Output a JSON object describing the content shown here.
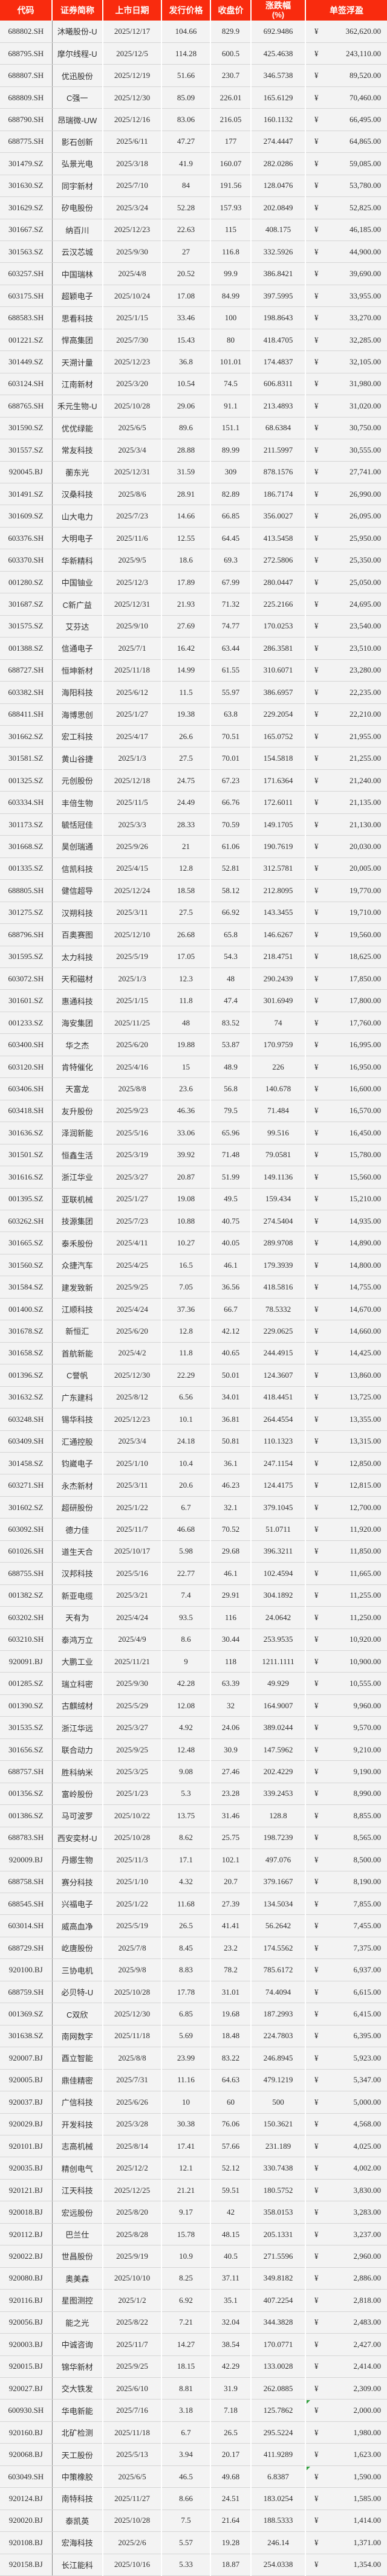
{
  "colors": {
    "header_bg": "#f92b0e",
    "header_text": "#ffffff",
    "row_bg": "#f3f3f3",
    "grid": "#d5d5d5",
    "col_divider": "#8a8a8a",
    "text": "#2e2e2e",
    "marker_green": "#2fa03c"
  },
  "table": {
    "headers": [
      "代码",
      "证券简称",
      "上市日期",
      "发行价格",
      "收盘价",
      "涨跌幅",
      "单签浮盈"
    ],
    "change_unit": "(%)",
    "currency_symbol": "¥",
    "columns": [
      {
        "name": "code-cell",
        "cls": "code"
      },
      {
        "name": "name-cell",
        "cls": "name"
      },
      {
        "name": "date-cell",
        "cls": "date"
      },
      {
        "name": "issue-price-cell",
        "cls": "num"
      },
      {
        "name": "close-price-cell",
        "cls": "num"
      },
      {
        "name": "change-pct-cell",
        "cls": "num"
      },
      {
        "name": "profit-cell",
        "cls": "profit"
      }
    ],
    "marked_rows": [
      108,
      111
    ],
    "rows": [
      [
        "688802.SH",
        "沐曦股份-U",
        "2025/12/17",
        "104.66",
        "829.9",
        "692.9486",
        "362,620.00"
      ],
      [
        "688795.SH",
        "摩尔线程-U",
        "2025/12/5",
        "114.28",
        "600.5",
        "425.4638",
        "243,110.00"
      ],
      [
        "688807.SH",
        "优迅股份",
        "2025/12/19",
        "51.66",
        "230.7",
        "346.5738",
        "89,520.00"
      ],
      [
        "688809.SH",
        "C强一",
        "2025/12/30",
        "85.09",
        "226.01",
        "165.6129",
        "70,460.00"
      ],
      [
        "688790.SH",
        "昂瑞微-UW",
        "2025/12/16",
        "83.06",
        "216.05",
        "160.1132",
        "66,495.00"
      ],
      [
        "688775.SH",
        "影石创新",
        "2025/6/11",
        "47.27",
        "177",
        "274.4447",
        "64,865.00"
      ],
      [
        "301479.SZ",
        "弘景光电",
        "2025/3/18",
        "41.9",
        "160.07",
        "282.0286",
        "59,085.00"
      ],
      [
        "301630.SZ",
        "同宇新材",
        "2025/7/10",
        "84",
        "191.56",
        "128.0476",
        "53,780.00"
      ],
      [
        "301629.SZ",
        "矽电股份",
        "2025/3/24",
        "52.28",
        "157.93",
        "202.0849",
        "52,825.00"
      ],
      [
        "301667.SZ",
        "纳百川",
        "2025/12/23",
        "22.63",
        "115",
        "408.175",
        "46,185.00"
      ],
      [
        "301563.SZ",
        "云汉芯城",
        "2025/9/30",
        "27",
        "116.8",
        "332.5926",
        "44,900.00"
      ],
      [
        "603257.SH",
        "中国瑞林",
        "2025/4/8",
        "20.52",
        "99.9",
        "386.8421",
        "39,690.00"
      ],
      [
        "603175.SH",
        "超颖电子",
        "2025/10/24",
        "17.08",
        "84.99",
        "397.5995",
        "33,955.00"
      ],
      [
        "688583.SH",
        "思看科技",
        "2025/1/15",
        "33.46",
        "100",
        "198.8643",
        "33,270.00"
      ],
      [
        "001221.SZ",
        "悍高集团",
        "2025/7/30",
        "15.43",
        "80",
        "418.4705",
        "32,285.00"
      ],
      [
        "301449.SZ",
        "天溯计量",
        "2025/12/23",
        "36.8",
        "101.01",
        "174.4837",
        "32,105.00"
      ],
      [
        "603124.SH",
        "江南新材",
        "2025/3/20",
        "10.54",
        "74.5",
        "606.8311",
        "31,980.00"
      ],
      [
        "688765.SH",
        "禾元生物-U",
        "2025/10/28",
        "29.06",
        "91.1",
        "213.4893",
        "31,020.00"
      ],
      [
        "301590.SZ",
        "优优绿能",
        "2025/6/5",
        "89.6",
        "151.1",
        "68.6384",
        "30,750.00"
      ],
      [
        "301557.SZ",
        "常友科技",
        "2025/3/4",
        "28.88",
        "89.99",
        "211.5997",
        "30,555.00"
      ],
      [
        "920045.BJ",
        "蘅东光",
        "2025/12/31",
        "31.59",
        "309",
        "878.1576",
        "27,741.00"
      ],
      [
        "301491.SZ",
        "汉桑科技",
        "2025/8/6",
        "28.91",
        "82.89",
        "186.7174",
        "26,990.00"
      ],
      [
        "301609.SZ",
        "山大电力",
        "2025/7/23",
        "14.66",
        "66.85",
        "356.0027",
        "26,095.00"
      ],
      [
        "603376.SH",
        "大明电子",
        "2025/11/6",
        "12.55",
        "64.45",
        "413.5458",
        "25,950.00"
      ],
      [
        "603370.SH",
        "华新精科",
        "2025/9/5",
        "18.6",
        "69.3",
        "272.5806",
        "25,350.00"
      ],
      [
        "001280.SZ",
        "中国铀业",
        "2025/12/3",
        "17.89",
        "67.99",
        "280.0447",
        "25,050.00"
      ],
      [
        "301687.SZ",
        "C新广益",
        "2025/12/31",
        "21.93",
        "71.32",
        "225.2166",
        "24,695.00"
      ],
      [
        "301575.SZ",
        "艾芬达",
        "2025/9/10",
        "27.69",
        "74.77",
        "170.0253",
        "23,540.00"
      ],
      [
        "001388.SZ",
        "信通电子",
        "2025/7/1",
        "16.42",
        "63.44",
        "286.3581",
        "23,510.00"
      ],
      [
        "688727.SH",
        "恒坤新材",
        "2025/11/18",
        "14.99",
        "61.55",
        "310.6071",
        "23,280.00"
      ],
      [
        "603382.SH",
        "海阳科技",
        "2025/6/12",
        "11.5",
        "55.97",
        "386.6957",
        "22,235.00"
      ],
      [
        "688411.SH",
        "海博思创",
        "2025/1/27",
        "19.38",
        "63.8",
        "229.2054",
        "22,210.00"
      ],
      [
        "301662.SZ",
        "宏工科技",
        "2025/4/17",
        "26.6",
        "70.51",
        "165.0752",
        "21,955.00"
      ],
      [
        "301581.SZ",
        "黄山谷捷",
        "2025/1/3",
        "27.5",
        "70.01",
        "154.5818",
        "21,255.00"
      ],
      [
        "001325.SZ",
        "元创股份",
        "2025/12/18",
        "24.75",
        "67.23",
        "171.6364",
        "21,240.00"
      ],
      [
        "603334.SH",
        "丰倍生物",
        "2025/11/5",
        "24.49",
        "66.76",
        "172.6011",
        "21,135.00"
      ],
      [
        "301173.SZ",
        "毓恬冠佳",
        "2025/3/3",
        "28.33",
        "70.59",
        "149.1705",
        "21,130.00"
      ],
      [
        "301668.SZ",
        "昊创瑞通",
        "2025/9/26",
        "21",
        "61.06",
        "190.7619",
        "20,030.00"
      ],
      [
        "001335.SZ",
        "信凯科技",
        "2025/4/15",
        "12.8",
        "52.81",
        "312.5781",
        "20,005.00"
      ],
      [
        "688805.SH",
        "健信超导",
        "2025/12/24",
        "18.58",
        "58.12",
        "212.8095",
        "19,770.00"
      ],
      [
        "301275.SZ",
        "汉朔科技",
        "2025/3/11",
        "27.5",
        "66.92",
        "143.3455",
        "19,710.00"
      ],
      [
        "688796.SH",
        "百奥赛图",
        "2025/12/10",
        "26.68",
        "65.8",
        "146.6267",
        "19,560.00"
      ],
      [
        "301595.SZ",
        "太力科技",
        "2025/5/19",
        "17.05",
        "54.3",
        "218.4751",
        "18,625.00"
      ],
      [
        "603072.SH",
        "天和磁材",
        "2025/1/3",
        "12.3",
        "48",
        "290.2439",
        "17,850.00"
      ],
      [
        "301601.SZ",
        "惠通科技",
        "2025/1/15",
        "11.8",
        "47.4",
        "301.6949",
        "17,800.00"
      ],
      [
        "001233.SZ",
        "海安集团",
        "2025/11/25",
        "48",
        "83.52",
        "74",
        "17,760.00"
      ],
      [
        "603400.SH",
        "华之杰",
        "2025/6/20",
        "19.88",
        "53.87",
        "170.9759",
        "16,995.00"
      ],
      [
        "603120.SH",
        "肯特催化",
        "2025/4/16",
        "15",
        "48.9",
        "226",
        "16,950.00"
      ],
      [
        "603406.SH",
        "天富龙",
        "2025/8/8",
        "23.6",
        "56.8",
        "140.678",
        "16,600.00"
      ],
      [
        "603418.SH",
        "友升股份",
        "2025/9/23",
        "46.36",
        "79.5",
        "71.484",
        "16,570.00"
      ],
      [
        "301636.SZ",
        "泽润新能",
        "2025/5/16",
        "33.06",
        "65.96",
        "99.516",
        "16,450.00"
      ],
      [
        "301501.SZ",
        "恒鑫生活",
        "2025/3/19",
        "39.92",
        "71.48",
        "79.0581",
        "15,780.00"
      ],
      [
        "301616.SZ",
        "浙江华业",
        "2025/3/27",
        "20.87",
        "51.99",
        "149.1136",
        "15,560.00"
      ],
      [
        "001395.SZ",
        "亚联机械",
        "2025/1/27",
        "19.08",
        "49.5",
        "159.434",
        "15,210.00"
      ],
      [
        "603262.SH",
        "技源集团",
        "2025/7/23",
        "10.88",
        "40.75",
        "274.5404",
        "14,935.00"
      ],
      [
        "301665.SZ",
        "泰禾股份",
        "2025/4/11",
        "10.27",
        "40.05",
        "289.9708",
        "14,890.00"
      ],
      [
        "301560.SZ",
        "众捷汽车",
        "2025/4/25",
        "16.5",
        "46.1",
        "179.3939",
        "14,800.00"
      ],
      [
        "301584.SZ",
        "建发致新",
        "2025/9/25",
        "7.05",
        "36.56",
        "418.5816",
        "14,755.00"
      ],
      [
        "001400.SZ",
        "江顺科技",
        "2025/4/24",
        "37.36",
        "66.7",
        "78.5332",
        "14,670.00"
      ],
      [
        "301678.SZ",
        "新恒汇",
        "2025/6/20",
        "12.8",
        "42.12",
        "229.0625",
        "14,660.00"
      ],
      [
        "301658.SZ",
        "首航新能",
        "2025/4/2",
        "11.8",
        "40.65",
        "244.4915",
        "14,425.00"
      ],
      [
        "001396.SZ",
        "C誉帆",
        "2025/12/30",
        "22.29",
        "50.01",
        "124.3607",
        "13,860.00"
      ],
      [
        "301632.SZ",
        "广东建科",
        "2025/8/12",
        "6.56",
        "34.01",
        "418.4451",
        "13,725.00"
      ],
      [
        "603248.SH",
        "锡华科技",
        "2025/12/23",
        "10.1",
        "36.81",
        "264.4554",
        "13,355.00"
      ],
      [
        "603409.SH",
        "汇通控股",
        "2025/3/4",
        "24.18",
        "50.81",
        "110.1323",
        "13,315.00"
      ],
      [
        "301458.SZ",
        "钧崴电子",
        "2025/1/10",
        "10.4",
        "36.1",
        "247.1154",
        "12,850.00"
      ],
      [
        "603271.SH",
        "永杰新材",
        "2025/3/11",
        "20.6",
        "46.23",
        "124.4175",
        "12,815.00"
      ],
      [
        "301602.SZ",
        "超研股份",
        "2025/1/22",
        "6.7",
        "32.1",
        "379.1045",
        "12,700.00"
      ],
      [
        "603092.SH",
        "德力佳",
        "2025/11/7",
        "46.68",
        "70.52",
        "51.0711",
        "11,920.00"
      ],
      [
        "601026.SH",
        "道生天合",
        "2025/10/17",
        "5.98",
        "29.68",
        "396.3211",
        "11,850.00"
      ],
      [
        "688755.SH",
        "汉邦科技",
        "2025/5/16",
        "22.77",
        "46.1",
        "102.4594",
        "11,665.00"
      ],
      [
        "001382.SZ",
        "新亚电缆",
        "2025/3/21",
        "7.4",
        "29.91",
        "304.1892",
        "11,255.00"
      ],
      [
        "603202.SH",
        "天有为",
        "2025/4/24",
        "93.5",
        "116",
        "24.0642",
        "11,250.00"
      ],
      [
        "603210.SH",
        "泰鸿万立",
        "2025/4/9",
        "8.6",
        "30.44",
        "253.9535",
        "10,920.00"
      ],
      [
        "920091.BJ",
        "大鹏工业",
        "2025/11/21",
        "9",
        "118",
        "1211.1111",
        "10,900.00"
      ],
      [
        "001285.SZ",
        "瑞立科密",
        "2025/9/30",
        "42.28",
        "63.39",
        "49.929",
        "10,555.00"
      ],
      [
        "001390.SZ",
        "古麒绒材",
        "2025/5/29",
        "12.08",
        "32",
        "164.9007",
        "9,960.00"
      ],
      [
        "301535.SZ",
        "浙江华远",
        "2025/3/27",
        "4.92",
        "24.06",
        "389.0244",
        "9,570.00"
      ],
      [
        "301656.SZ",
        "联合动力",
        "2025/9/25",
        "12.48",
        "30.9",
        "147.5962",
        "9,210.00"
      ],
      [
        "688757.SH",
        "胜科纳米",
        "2025/3/25",
        "9.08",
        "27.46",
        "202.4229",
        "9,190.00"
      ],
      [
        "001356.SZ",
        "富岭股份",
        "2025/1/23",
        "5.3",
        "23.28",
        "339.2453",
        "8,990.00"
      ],
      [
        "001386.SZ",
        "马可波罗",
        "2025/10/22",
        "13.75",
        "31.46",
        "128.8",
        "8,855.00"
      ],
      [
        "688783.SH",
        "西安奕材-U",
        "2025/10/28",
        "8.62",
        "25.75",
        "198.7239",
        "8,565.00"
      ],
      [
        "920009.BJ",
        "丹娜生物",
        "2025/11/3",
        "17.1",
        "102.1",
        "497.076",
        "8,500.00"
      ],
      [
        "688758.SH",
        "赛分科技",
        "2025/1/10",
        "4.32",
        "20.7",
        "379.1667",
        "8,190.00"
      ],
      [
        "688545.SH",
        "兴福电子",
        "2025/1/22",
        "11.68",
        "27.39",
        "134.5034",
        "7,855.00"
      ],
      [
        "603014.SH",
        "威高血净",
        "2025/5/19",
        "26.5",
        "41.41",
        "56.2642",
        "7,455.00"
      ],
      [
        "688729.SH",
        "屹唐股份",
        "2025/7/8",
        "8.45",
        "23.2",
        "174.5562",
        "7,375.00"
      ],
      [
        "920100.BJ",
        "三协电机",
        "2025/9/8",
        "8.83",
        "78.2",
        "785.6172",
        "6,937.00"
      ],
      [
        "688759.SH",
        "必贝特-U",
        "2025/10/28",
        "17.78",
        "31.01",
        "74.4094",
        "6,615.00"
      ],
      [
        "001369.SZ",
        "C双欣",
        "2025/12/30",
        "6.85",
        "19.68",
        "187.2993",
        "6,415.00"
      ],
      [
        "301638.SZ",
        "南网数字",
        "2025/11/18",
        "5.69",
        "18.48",
        "224.7803",
        "6,395.00"
      ],
      [
        "920007.BJ",
        "酉立智能",
        "2025/8/8",
        "23.99",
        "83.22",
        "246.8945",
        "5,923.00"
      ],
      [
        "920005.BJ",
        "鼎佳精密",
        "2025/7/31",
        "11.16",
        "64.63",
        "479.1219",
        "5,347.00"
      ],
      [
        "920037.BJ",
        "广信科技",
        "2025/6/26",
        "10",
        "60",
        "500",
        "5,000.00"
      ],
      [
        "920029.BJ",
        "开发科技",
        "2025/3/28",
        "30.38",
        "76.06",
        "150.3621",
        "4,568.00"
      ],
      [
        "920101.BJ",
        "志高机械",
        "2025/8/14",
        "17.41",
        "57.66",
        "231.189",
        "4,025.00"
      ],
      [
        "920035.BJ",
        "精创电气",
        "2025/12/2",
        "12.1",
        "52.12",
        "330.7438",
        "4,002.00"
      ],
      [
        "920121.BJ",
        "江天科技",
        "2025/12/25",
        "21.21",
        "59.51",
        "180.5752",
        "3,830.00"
      ],
      [
        "920018.BJ",
        "宏远股份",
        "2025/8/20",
        "9.17",
        "42",
        "358.0153",
        "3,283.00"
      ],
      [
        "920112.BJ",
        "巴兰仕",
        "2025/8/28",
        "15.78",
        "48.15",
        "205.1331",
        "3,237.00"
      ],
      [
        "920022.BJ",
        "世昌股份",
        "2025/9/19",
        "10.9",
        "40.5",
        "271.5596",
        "2,960.00"
      ],
      [
        "920080.BJ",
        "奥美森",
        "2025/10/10",
        "8.25",
        "37.11",
        "349.8182",
        "2,886.00"
      ],
      [
        "920116.BJ",
        "星图测控",
        "2025/1/2",
        "6.92",
        "35.1",
        "407.2254",
        "2,818.00"
      ],
      [
        "920056.BJ",
        "能之光",
        "2025/8/22",
        "7.21",
        "32.04",
        "344.3828",
        "2,483.00"
      ],
      [
        "920003.BJ",
        "中诚咨询",
        "2025/11/7",
        "14.27",
        "38.54",
        "170.0771",
        "2,427.00"
      ],
      [
        "920015.BJ",
        "锦华新材",
        "2025/9/25",
        "18.15",
        "42.29",
        "133.0028",
        "2,414.00"
      ],
      [
        "920027.BJ",
        "交大铁发",
        "2025/6/10",
        "8.81",
        "31.9",
        "262.0885",
        "2,309.00"
      ],
      [
        "600930.SH",
        "华电新能",
        "2025/7/16",
        "3.18",
        "7.18",
        "125.7862",
        "2,000.00"
      ],
      [
        "920160.BJ",
        "北矿检测",
        "2025/11/18",
        "6.7",
        "26.5",
        "295.5224",
        "1,980.00"
      ],
      [
        "920068.BJ",
        "天工股份",
        "2025/5/13",
        "3.94",
        "20.17",
        "411.9289",
        "1,623.00"
      ],
      [
        "603049.SH",
        "中策橡胶",
        "2025/6/5",
        "46.5",
        "49.68",
        "6.8387",
        "1,590.00"
      ],
      [
        "920124.BJ",
        "南特科技",
        "2025/11/27",
        "8.66",
        "24.51",
        "183.0254",
        "1,585.00"
      ],
      [
        "920020.BJ",
        "泰凯英",
        "2025/10/28",
        "7.5",
        "21.64",
        "188.5333",
        "1,414.00"
      ],
      [
        "920108.BJ",
        "宏海科技",
        "2025/2/6",
        "5.57",
        "19.28",
        "246.14",
        "1,371.00"
      ],
      [
        "920158.BJ",
        "长江能科",
        "2025/10/16",
        "5.33",
        "18.87",
        "254.0338",
        "1,354.00"
      ]
    ]
  }
}
